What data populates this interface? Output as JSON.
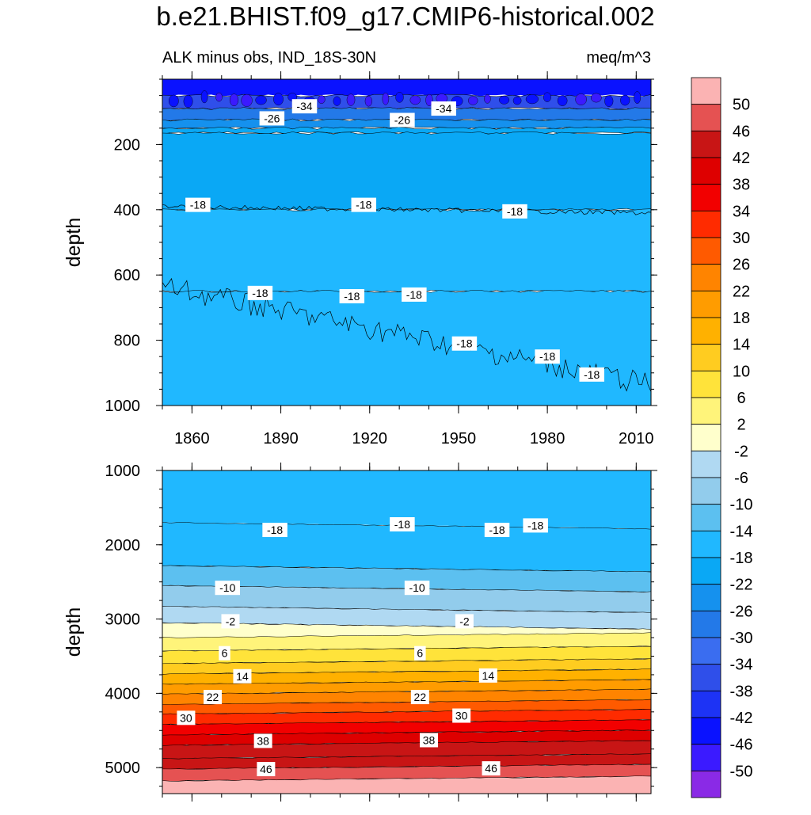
{
  "figure": {
    "title": "b.e21.BHIST.f09_g17.CMIP6-historical.002",
    "subtitle_left": "ALK minus obs, IND_18S-30N",
    "subtitle_right": "meq/m^3"
  },
  "chart_data": [
    {
      "type": "contour",
      "panel": "top",
      "ylabel": "depth",
      "xlim": [
        1850,
        2015
      ],
      "ylim": [
        0,
        1000
      ],
      "y_inverted": true,
      "x_ticks": [
        1860,
        1890,
        1920,
        1950,
        1980,
        2010
      ],
      "y_ticks": [
        200,
        400,
        600,
        800,
        1000
      ],
      "bands": [
        {
          "from": 0,
          "to": 50,
          "value": -46
        },
        {
          "from": 50,
          "to": 90,
          "value": -38
        },
        {
          "from": 90,
          "to": 125,
          "value": -30
        },
        {
          "from": 125,
          "to": 150,
          "value": -26
        },
        {
          "from": 150,
          "to": 165,
          "value": -22
        },
        {
          "from": 165,
          "to": 400,
          "value": -20
        },
        {
          "from": 400,
          "to": 650,
          "value": -18
        },
        {
          "from": 650,
          "to": 1000,
          "value": -18
        }
      ],
      "contour_lines": [
        {
          "level": -18,
          "depth_start": 390,
          "depth_end": 410
        },
        {
          "level": -18,
          "depth_start": 650,
          "depth_end": 950
        }
      ],
      "contour_labels": [
        {
          "text": "-34",
          "x": 1898,
          "y": 83
        },
        {
          "text": "-26",
          "x": 1887,
          "y": 120
        },
        {
          "text": "-26",
          "x": 1931,
          "y": 125
        },
        {
          "text": "-34",
          "x": 1945,
          "y": 90
        },
        {
          "text": "-18",
          "x": 1862,
          "y": 385
        },
        {
          "text": "-18",
          "x": 1918,
          "y": 385
        },
        {
          "text": "-18",
          "x": 1969,
          "y": 405
        },
        {
          "text": "-18",
          "x": 1883,
          "y": 655
        },
        {
          "text": "-18",
          "x": 1914,
          "y": 665
        },
        {
          "text": "-18",
          "x": 1935,
          "y": 660
        },
        {
          "text": "-18",
          "x": 1952,
          "y": 810
        },
        {
          "text": "-18",
          "x": 1980,
          "y": 850
        },
        {
          "text": "-18",
          "x": 1995,
          "y": 905
        }
      ]
    },
    {
      "type": "contour",
      "panel": "bottom",
      "ylabel": "depth",
      "xlim": [
        1850,
        2015
      ],
      "ylim": [
        1000,
        5350
      ],
      "y_inverted": true,
      "y_ticks": [
        1000,
        2000,
        3000,
        4000,
        5000
      ],
      "bands": [
        {
          "from": 1000,
          "to": 1700,
          "value": -18
        },
        {
          "from": 1700,
          "to": 2280,
          "value": -18
        },
        {
          "from": 2280,
          "to": 2550,
          "value": -14
        },
        {
          "from": 2550,
          "to": 2830,
          "value": -10
        },
        {
          "from": 2830,
          "to": 3050,
          "value": -6
        },
        {
          "from": 3050,
          "to": 3250,
          "value": 0
        },
        {
          "from": 3250,
          "to": 3430,
          "value": 4
        },
        {
          "from": 3430,
          "to": 3600,
          "value": 8
        },
        {
          "from": 3600,
          "to": 3740,
          "value": 12
        },
        {
          "from": 3740,
          "to": 3880,
          "value": 16
        },
        {
          "from": 3880,
          "to": 4010,
          "value": 20
        },
        {
          "from": 4010,
          "to": 4150,
          "value": 24
        },
        {
          "from": 4150,
          "to": 4280,
          "value": 28
        },
        {
          "from": 4280,
          "to": 4420,
          "value": 32
        },
        {
          "from": 4420,
          "to": 4560,
          "value": 36
        },
        {
          "from": 4560,
          "to": 4700,
          "value": 40
        },
        {
          "from": 4700,
          "to": 4880,
          "value": 44
        },
        {
          "from": 4880,
          "to": 5020,
          "value": 44
        },
        {
          "from": 5020,
          "to": 5180,
          "value": 48
        },
        {
          "from": 5180,
          "to": 5350,
          "value": 52
        }
      ],
      "contour_labels": [
        {
          "text": "-18",
          "x": 1888,
          "y": 1800
        },
        {
          "text": "-18",
          "x": 1931,
          "y": 1725
        },
        {
          "text": "-18",
          "x": 1963,
          "y": 1800
        },
        {
          "text": "-18",
          "x": 1976,
          "y": 1740
        },
        {
          "text": "-10",
          "x": 1872,
          "y": 2580
        },
        {
          "text": "-10",
          "x": 1936,
          "y": 2580
        },
        {
          "text": "-2",
          "x": 1873,
          "y": 3030
        },
        {
          "text": "-2",
          "x": 1952,
          "y": 3030
        },
        {
          "text": "6",
          "x": 1871,
          "y": 3460
        },
        {
          "text": "6",
          "x": 1937,
          "y": 3460
        },
        {
          "text": "14",
          "x": 1877,
          "y": 3770
        },
        {
          "text": "14",
          "x": 1960,
          "y": 3760
        },
        {
          "text": "22",
          "x": 1867,
          "y": 4050
        },
        {
          "text": "22",
          "x": 1937,
          "y": 4050
        },
        {
          "text": "30",
          "x": 1858,
          "y": 4330
        },
        {
          "text": "30",
          "x": 1951,
          "y": 4300
        },
        {
          "text": "38",
          "x": 1884,
          "y": 4640
        },
        {
          "text": "38",
          "x": 1940,
          "y": 4630
        },
        {
          "text": "46",
          "x": 1885,
          "y": 5020
        },
        {
          "text": "46",
          "x": 1961,
          "y": 5010
        }
      ]
    }
  ],
  "colorbar": {
    "labels": [
      "50",
      "46",
      "42",
      "38",
      "34",
      "30",
      "26",
      "22",
      "18",
      "14",
      "10",
      "6",
      "2",
      "-2",
      "-6",
      "-10",
      "-14",
      "-18",
      "-22",
      "-26",
      "-30",
      "-34",
      "-38",
      "-42",
      "-46",
      "-50"
    ],
    "colors": [
      "#fbb3b3",
      "#e55252",
      "#c81515",
      "#de0000",
      "#f20000",
      "#ff2b00",
      "#ff5a00",
      "#ff8400",
      "#ff9c00",
      "#ffb100",
      "#ffcc20",
      "#ffe33a",
      "#fff47a",
      "#ffffcc",
      "#b0d9f2",
      "#92ccec",
      "#5cc0f0",
      "#20b8ff",
      "#0aa8f5",
      "#1591ee",
      "#2379e8",
      "#3a6df0",
      "#2f4fea",
      "#1d33f5",
      "#0a12ff",
      "#3b1aff",
      "#8a2ae6"
    ]
  },
  "colors": {
    "line": "#000000",
    "background": "#ffffff"
  }
}
